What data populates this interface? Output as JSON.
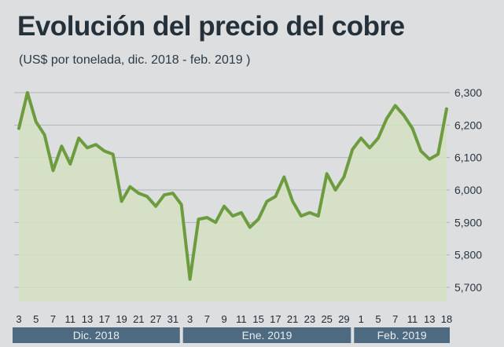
{
  "chart_data": {
    "type": "area",
    "title": "Evolución del precio del cobre",
    "subtitle": "(US$ por tonelada, dic. 2018 - feb. 2019 )",
    "ylim": [
      5650,
      6330
    ],
    "yticks": [
      "6,300",
      "6,200",
      "6,100",
      "6,000",
      "5,900",
      "5,800",
      "5,700"
    ],
    "ytick_values": [
      6300,
      6200,
      6100,
      6000,
      5900,
      5800,
      5700
    ],
    "xticks": [
      "3",
      "5",
      "7",
      "11",
      "13",
      "17",
      "19",
      "21",
      "27",
      "31",
      "3",
      "7",
      "9",
      "11",
      "15",
      "17",
      "21",
      "23",
      "25",
      "29",
      "1",
      "5",
      "7",
      "11",
      "13",
      "18"
    ],
    "months": [
      "Dic. 2018",
      "Ene. 2019",
      "Feb. 2019"
    ],
    "month_ranges": [
      [
        0,
        9
      ],
      [
        10,
        19
      ],
      [
        20,
        25
      ]
    ],
    "grid": true,
    "line_color": "#6c9c3e",
    "fill_color": "#d3e0c2",
    "band_color": "#4d6a80",
    "series": [
      {
        "x": [
          0,
          0.5,
          1,
          1.5,
          2,
          2.5,
          3,
          3.5,
          4,
          4.5,
          5,
          5.5,
          6,
          6.5,
          7,
          7.5,
          8,
          8.5,
          9,
          9.5,
          10,
          10.5,
          11,
          11.5,
          12,
          12.5,
          13,
          13.5,
          14,
          14.5,
          15,
          15.5,
          16,
          16.5,
          17,
          17.5,
          18,
          18.5,
          19,
          19.5,
          20,
          20.5,
          21,
          21.5,
          22,
          22.5,
          23,
          23.5,
          24,
          24.5,
          25
        ],
        "values": [
          6190,
          6300,
          6210,
          6170,
          6060,
          6135,
          6080,
          6160,
          6130,
          6140,
          6120,
          6110,
          5965,
          6010,
          5990,
          5980,
          5950,
          5985,
          5990,
          5955,
          5725,
          5910,
          5915,
          5900,
          5950,
          5920,
          5930,
          5885,
          5910,
          5965,
          5980,
          6040,
          5965,
          5920,
          5930,
          5920,
          6050,
          6000,
          6040,
          6125,
          6160,
          6130,
          6160,
          6220,
          6260,
          6230,
          6190,
          6120,
          6095,
          6110,
          6250
        ]
      }
    ]
  }
}
